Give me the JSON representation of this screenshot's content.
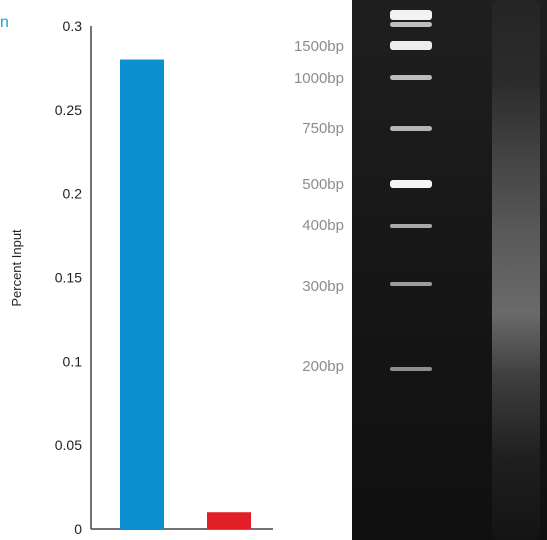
{
  "corner_text": "n",
  "chart_data": {
    "type": "bar",
    "categories": [
      "",
      ""
    ],
    "values": [
      0.28,
      0.01
    ],
    "colors": [
      "#0a8fd1",
      "#e21f26"
    ],
    "ylabel": "Percent Input",
    "ylim": [
      0,
      0.3
    ],
    "yticks": [
      "0",
      "0.05",
      "0.1",
      "0.15",
      "0.2",
      "0.25",
      "0.3"
    ],
    "grid": false
  },
  "gel": {
    "ladder_labels": [
      "1500bp",
      "1000bp",
      "750bp",
      "500bp",
      "400bp",
      "300bp",
      "200bp"
    ]
  }
}
